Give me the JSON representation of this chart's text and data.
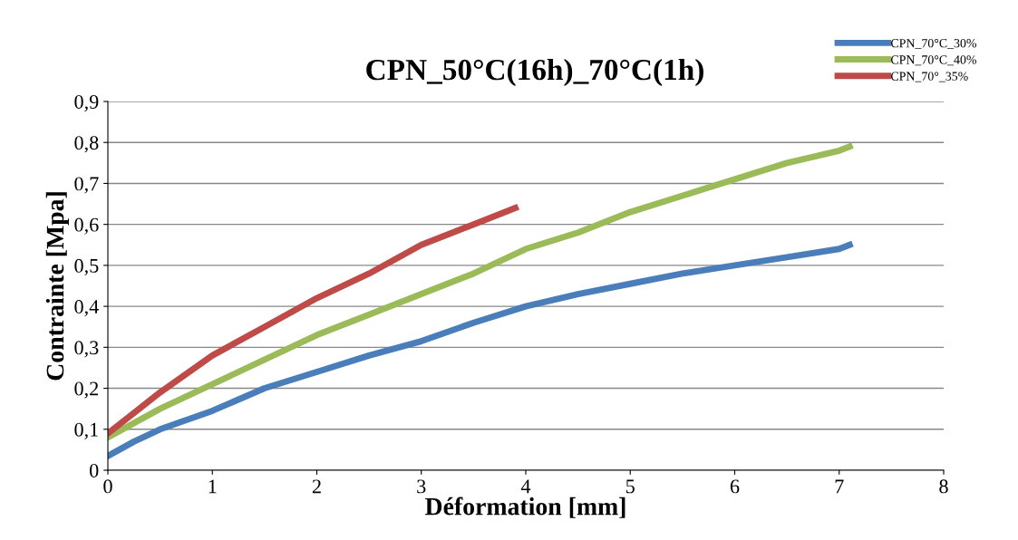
{
  "chart_data": {
    "type": "line",
    "title": "CPN_50°C(16h)_70°C(1h)",
    "xlabel": "Déformation [mm]",
    "ylabel": "Contrainte [Mpa]",
    "xlim": [
      0,
      8
    ],
    "xticks": [
      0,
      1,
      2,
      3,
      4,
      5,
      6,
      7,
      8
    ],
    "ylim": [
      0,
      0.9
    ],
    "yticks": [
      {
        "value": 0,
        "label": "0"
      },
      {
        "value": 0.1,
        "label": "0,1"
      },
      {
        "value": 0.2,
        "label": "0,2"
      },
      {
        "value": 0.3,
        "label": "0,3"
      },
      {
        "value": 0.4,
        "label": "0,4"
      },
      {
        "value": 0.5,
        "label": "0,5"
      },
      {
        "value": 0.6,
        "label": "0,6"
      },
      {
        "value": 0.7,
        "label": "0,7"
      },
      {
        "value": 0.8,
        "label": "0,8"
      },
      {
        "value": 0.9,
        "label": "0,9"
      }
    ],
    "grid": "y",
    "legend": "top right",
    "marker": "none",
    "line_style": "solid",
    "series": [
      {
        "name": "CPN_70°C_30%",
        "color": "#4a7ebb",
        "x": [
          0,
          0.25,
          0.5,
          1,
          1.5,
          2,
          2.5,
          3,
          3.5,
          4,
          4.5,
          5,
          5.5,
          6,
          6.5,
          7,
          7.1
        ],
        "values": [
          0.035,
          0.07,
          0.1,
          0.145,
          0.2,
          0.24,
          0.28,
          0.315,
          0.36,
          0.4,
          0.43,
          0.455,
          0.48,
          0.5,
          0.52,
          0.54,
          0.55
        ]
      },
      {
        "name": "CPN_70°C_40%",
        "color": "#9bbb59",
        "x": [
          0,
          0.5,
          1,
          1.5,
          2,
          2.5,
          3,
          3.5,
          4,
          4.5,
          5,
          5.5,
          6,
          6.5,
          7,
          7.1
        ],
        "values": [
          0.08,
          0.15,
          0.21,
          0.27,
          0.33,
          0.38,
          0.43,
          0.48,
          0.54,
          0.58,
          0.63,
          0.67,
          0.71,
          0.75,
          0.78,
          0.79
        ]
      },
      {
        "name": "CPN_70°_35%",
        "color": "#be4b48",
        "x": [
          0,
          0.25,
          0.5,
          1,
          1.5,
          2,
          2.5,
          3,
          3.5,
          3.9
        ],
        "values": [
          0.09,
          0.14,
          0.19,
          0.28,
          0.35,
          0.42,
          0.48,
          0.55,
          0.6,
          0.64
        ]
      }
    ]
  }
}
